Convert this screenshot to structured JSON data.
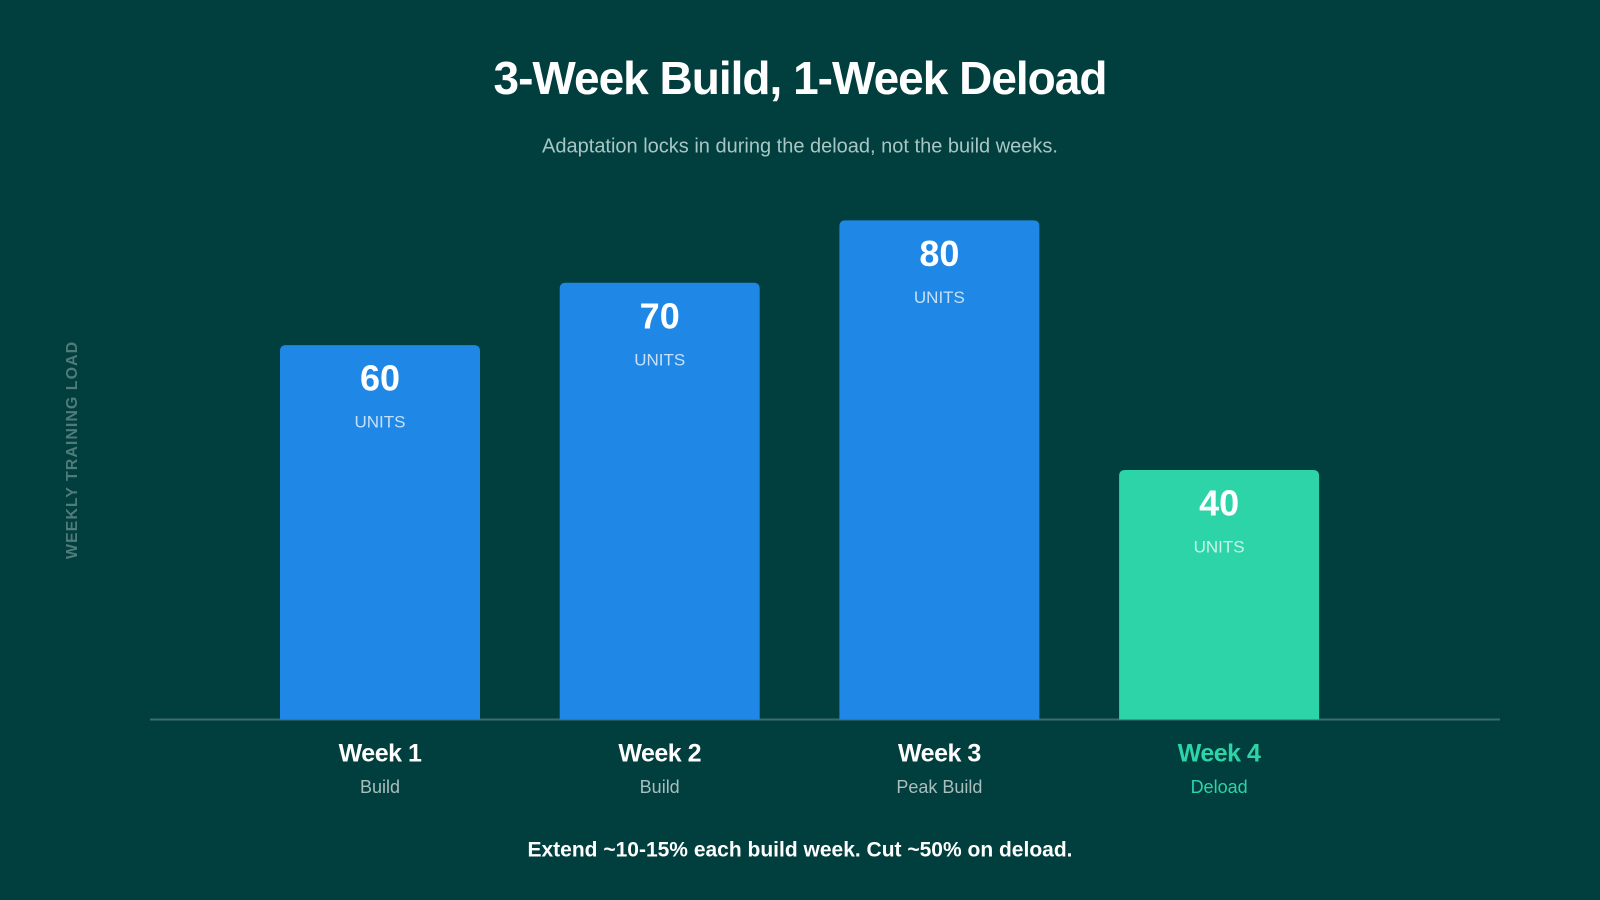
{
  "chart_data": {
    "type": "bar",
    "title": "3-Week Build, 1-Week Deload",
    "subtitle": "Adaptation locks in during the deload, not the build weeks.",
    "y_label": "WEEKLY TRAINING LOAD",
    "categories": [
      "Week 1",
      "Week 2",
      "Week 3",
      "Week 4"
    ],
    "category_notes": [
      "Build",
      "Build",
      "Peak Build",
      "Deload"
    ],
    "values": [
      60,
      70,
      80,
      40
    ],
    "unit_label": "UNITS",
    "colors": [
      "#1f87e5",
      "#1f87e5",
      "#1f87e5",
      "#2dd4a7"
    ],
    "highlight_index": 3,
    "ylim": [
      0,
      80
    ],
    "footnote": "Extend ~10-15% each build week. Cut ~50% on deload."
  }
}
